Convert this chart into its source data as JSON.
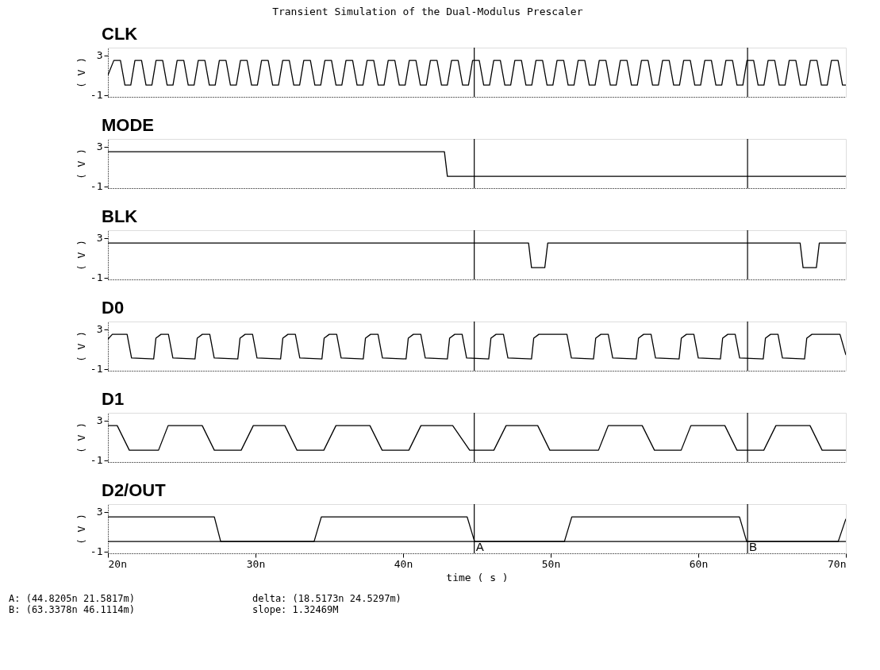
{
  "chart_data": [
    {
      "type": "line",
      "title": "Transient Simulation of the Dual-Modulus Prescaler",
      "ylabel": "( V )",
      "xlim": [
        20,
        70
      ],
      "ylim": [
        -1.2,
        3.8
      ],
      "yticks": [
        -1,
        3
      ],
      "tick_labels": "y",
      "ref_lines": [
        {
          "axis": "x",
          "value": 44.8205
        },
        {
          "axis": "x",
          "value": 63.3378
        }
      ],
      "series": [
        {
          "name": "CLK",
          "color": "#000000",
          "x": [
            20,
            20.4,
            20.85,
            21.15,
            21.55,
            21.83,
            22.28,
            22.58,
            22.98,
            23.26,
            23.71,
            24.01,
            24.41,
            24.69,
            25.14,
            25.44,
            25.84,
            26.12,
            26.57,
            26.87,
            27.27,
            27.55,
            28.0,
            28.3,
            28.7,
            28.98,
            29.43,
            29.73,
            30.13,
            30.41,
            30.86,
            31.16,
            31.56,
            31.84,
            32.29,
            32.59,
            32.99,
            33.27,
            33.72,
            34.02,
            34.42,
            34.7,
            35.15,
            35.45,
            35.85,
            36.13,
            36.58,
            36.88,
            37.28,
            37.56,
            38.01,
            38.31,
            38.71,
            38.99,
            39.44,
            39.74,
            40.14,
            40.42,
            40.87,
            41.17,
            41.57,
            41.85,
            42.3,
            42.6,
            43.0,
            43.28,
            43.73,
            44.03,
            44.43,
            44.71,
            45.16,
            45.46,
            45.86,
            46.14,
            46.59,
            46.89,
            47.29,
            47.57,
            48.02,
            48.32,
            48.72,
            49.0,
            49.45,
            49.75,
            50.15,
            50.43,
            50.88,
            51.18,
            51.58,
            51.86,
            52.31,
            52.61,
            53.01,
            53.29,
            53.74,
            54.04,
            54.44,
            54.72,
            55.17,
            55.47,
            55.87,
            56.15,
            56.6,
            56.9,
            57.3,
            57.58,
            58.03,
            58.33,
            58.73,
            59.01,
            59.46,
            59.76,
            60.16,
            60.44,
            60.89,
            61.19,
            61.59,
            61.87,
            62.32,
            62.62,
            63.02,
            63.3,
            63.75,
            64.05,
            64.45,
            64.73,
            65.18,
            65.48,
            65.88,
            66.16,
            66.61,
            66.91,
            67.31,
            67.59,
            68.04,
            68.34,
            68.74,
            69.02,
            69.47,
            69.77,
            70
          ],
          "values": [
            1.0,
            2.5,
            2.5,
            0,
            0,
            2.5,
            2.5,
            0,
            0,
            2.5,
            2.5,
            0,
            0,
            2.5,
            2.5,
            0,
            0,
            2.5,
            2.5,
            0,
            0,
            2.5,
            2.5,
            0,
            0,
            2.5,
            2.5,
            0,
            0,
            2.5,
            2.5,
            0,
            0,
            2.5,
            2.5,
            0,
            0,
            2.5,
            2.5,
            0,
            0,
            2.5,
            2.5,
            0,
            0,
            2.5,
            2.5,
            0,
            0,
            2.5,
            2.5,
            0,
            0,
            2.5,
            2.5,
            0,
            0,
            2.5,
            2.5,
            0,
            0,
            2.5,
            2.5,
            0,
            0,
            2.5,
            2.5,
            0,
            0,
            2.5,
            2.5,
            0,
            0,
            2.5,
            2.5,
            0,
            0,
            2.5,
            2.5,
            0,
            0,
            2.5,
            2.5,
            0,
            0,
            2.5,
            2.5,
            0,
            0,
            2.5,
            2.5,
            0,
            0,
            2.5,
            2.5,
            0,
            0,
            2.5,
            2.5,
            0,
            0,
            2.5,
            2.5,
            0,
            0,
            2.5,
            2.5,
            0,
            0,
            2.5,
            2.5,
            0,
            0,
            2.5,
            2.5,
            0,
            0,
            2.5,
            2.5,
            0,
            0,
            2.5,
            2.5,
            0,
            0,
            2.5,
            2.5,
            0,
            0,
            2.5,
            2.5,
            0,
            0,
            2.5,
            2.5,
            0,
            0,
            2.5,
            2.5,
            0,
            0
          ]
        }
      ]
    },
    {
      "type": "line",
      "ylabel": "( V )",
      "xlim": [
        20,
        70
      ],
      "ylim": [
        -1.2,
        3.8
      ],
      "yticks": [
        -1,
        3
      ],
      "tick_labels": "y",
      "ref_lines": [
        {
          "axis": "x",
          "value": 44.8205
        },
        {
          "axis": "x",
          "value": 63.3378
        }
      ],
      "series": [
        {
          "name": "MODE",
          "color": "#000000",
          "x": [
            20,
            42.8,
            43.0,
            70
          ],
          "values": [
            2.5,
            2.5,
            0,
            0
          ]
        }
      ]
    },
    {
      "type": "line",
      "ylabel": "( V )",
      "xlim": [
        20,
        70
      ],
      "ylim": [
        -1.2,
        3.8
      ],
      "yticks": [
        -1,
        3
      ],
      "tick_labels": "y",
      "ref_lines": [
        {
          "axis": "x",
          "value": 44.8205
        },
        {
          "axis": "x",
          "value": 63.3378
        }
      ],
      "series": [
        {
          "name": "BLK",
          "color": "#000000",
          "x": [
            20,
            48.5,
            48.7,
            49.6,
            49.8,
            66.9,
            67.1,
            68.0,
            68.2,
            70
          ],
          "values": [
            2.5,
            2.5,
            0,
            0,
            2.5,
            2.5,
            0,
            0,
            2.5,
            2.5
          ]
        }
      ]
    },
    {
      "type": "line",
      "ylabel": "( V )",
      "xlim": [
        20,
        70
      ],
      "ylim": [
        -1.2,
        3.8
      ],
      "yticks": [
        -1,
        3
      ],
      "tick_labels": "y",
      "ref_lines": [
        {
          "axis": "x",
          "value": 44.8205
        },
        {
          "axis": "x",
          "value": 63.3378
        }
      ],
      "series": [
        {
          "name": "D0",
          "color": "#000000",
          "x": [
            20,
            20.3,
            21.3,
            21.6,
            23.1,
            23.25,
            23.6,
            24.1,
            24.4,
            25.9,
            26.05,
            26.4,
            26.9,
            27.2,
            28.8,
            28.95,
            29.3,
            29.8,
            30.1,
            31.7,
            31.85,
            32.2,
            32.7,
            33.0,
            34.5,
            34.65,
            35.0,
            35.5,
            35.8,
            37.3,
            37.45,
            37.8,
            38.3,
            38.6,
            40.2,
            40.35,
            40.7,
            41.2,
            41.5,
            43.0,
            43.15,
            43.5,
            44.0,
            44.3,
            45.8,
            45.95,
            46.3,
            46.8,
            47.1,
            48.7,
            48.85,
            49.2,
            51.1,
            51.4,
            52.9,
            53.05,
            53.4,
            53.9,
            54.2,
            55.8,
            55.95,
            56.3,
            56.8,
            57.1,
            58.7,
            58.85,
            59.2,
            59.7,
            60.0,
            61.5,
            61.65,
            62.0,
            62.5,
            62.8,
            64.4,
            64.55,
            64.9,
            65.4,
            65.7,
            67.2,
            67.35,
            67.7,
            69.6,
            70
          ],
          "values": [
            2.0,
            2.5,
            2.5,
            0.1,
            0,
            2.1,
            2.5,
            2.5,
            0.1,
            0,
            2.1,
            2.5,
            2.5,
            0.1,
            0,
            2.1,
            2.5,
            2.5,
            0.1,
            0,
            2.1,
            2.5,
            2.5,
            0.1,
            0,
            2.1,
            2.5,
            2.5,
            0.1,
            0,
            2.1,
            2.5,
            2.5,
            0.1,
            0,
            2.1,
            2.5,
            2.5,
            0.1,
            0,
            2.1,
            2.5,
            2.5,
            0.1,
            0,
            2.1,
            2.5,
            2.5,
            0.1,
            0,
            2.1,
            2.5,
            2.5,
            0.1,
            0,
            2.1,
            2.5,
            2.5,
            0.1,
            0,
            2.1,
            2.5,
            2.5,
            0.1,
            0,
            2.1,
            2.5,
            2.5,
            0.1,
            0,
            2.1,
            2.5,
            2.5,
            0.1,
            0,
            2.1,
            2.5,
            2.5,
            0.1,
            0,
            2.1,
            2.5,
            2.5,
            0.4
          ]
        }
      ]
    },
    {
      "type": "line",
      "ylabel": "( V )",
      "xlim": [
        20,
        70
      ],
      "ylim": [
        -1.2,
        3.8
      ],
      "yticks": [
        -1,
        3
      ],
      "tick_labels": "y",
      "ref_lines": [
        {
          "axis": "x",
          "value": 44.8205
        },
        {
          "axis": "x",
          "value": 63.3378
        }
      ],
      "series": [
        {
          "name": "D1",
          "color": "#000000",
          "x": [
            20,
            20.63,
            21.45,
            23.43,
            24.08,
            26.39,
            27.21,
            29.03,
            29.85,
            31.99,
            32.81,
            34.63,
            35.45,
            37.75,
            38.58,
            40.39,
            41.21,
            43.36,
            44.51,
            46.15,
            46.98,
            49.12,
            49.94,
            53.24,
            53.9,
            56.2,
            57.03,
            58.84,
            59.5,
            61.8,
            62.62,
            64.44,
            65.26,
            67.57,
            68.39,
            70
          ],
          "values": [
            2.5,
            2.5,
            0,
            0,
            2.5,
            2.5,
            0,
            0,
            2.5,
            2.5,
            0,
            0,
            2.5,
            2.5,
            0,
            0,
            2.5,
            2.5,
            0,
            0,
            2.5,
            2.5,
            0,
            0,
            2.5,
            2.5,
            0,
            0,
            2.5,
            2.5,
            0,
            0,
            2.5,
            2.5,
            0,
            0
          ]
        }
      ]
    },
    {
      "type": "line",
      "ylabel": "( V )",
      "xlabel": "time ( s )",
      "xlim": [
        20,
        70
      ],
      "ylim": [
        -1.2,
        3.8
      ],
      "yticks": [
        -1,
        3
      ],
      "xticks": [
        {
          "value": 20,
          "label": "20n"
        },
        {
          "value": 30,
          "label": "30n"
        },
        {
          "value": 40,
          "label": "40n"
        },
        {
          "value": 50,
          "label": "50n"
        },
        {
          "value": 60,
          "label": "60n"
        },
        {
          "value": 70,
          "label": "70n"
        }
      ],
      "ref_lines": [
        {
          "axis": "x",
          "value": 44.8205,
          "label": "A"
        },
        {
          "axis": "x",
          "value": 63.3378,
          "label": "B"
        },
        {
          "axis": "y",
          "value": 0
        }
      ],
      "annotations": [
        "A: (44.8205n 21.5817m)",
        "delta: (18.5173n 24.5297m)",
        "B: (63.3378n 46.1114m)",
        "slope: 1.32469M"
      ],
      "series": [
        {
          "name": "D2/OUT",
          "color": "#000000",
          "x": [
            20,
            27.21,
            27.64,
            33.97,
            34.46,
            44.34,
            44.84,
            50.93,
            51.43,
            62.79,
            63.28,
            69.48,
            70
          ],
          "values": [
            2.5,
            2.5,
            0,
            0,
            2.5,
            2.5,
            0,
            0,
            2.5,
            2.5,
            0,
            0,
            2.3
          ]
        }
      ]
    }
  ]
}
